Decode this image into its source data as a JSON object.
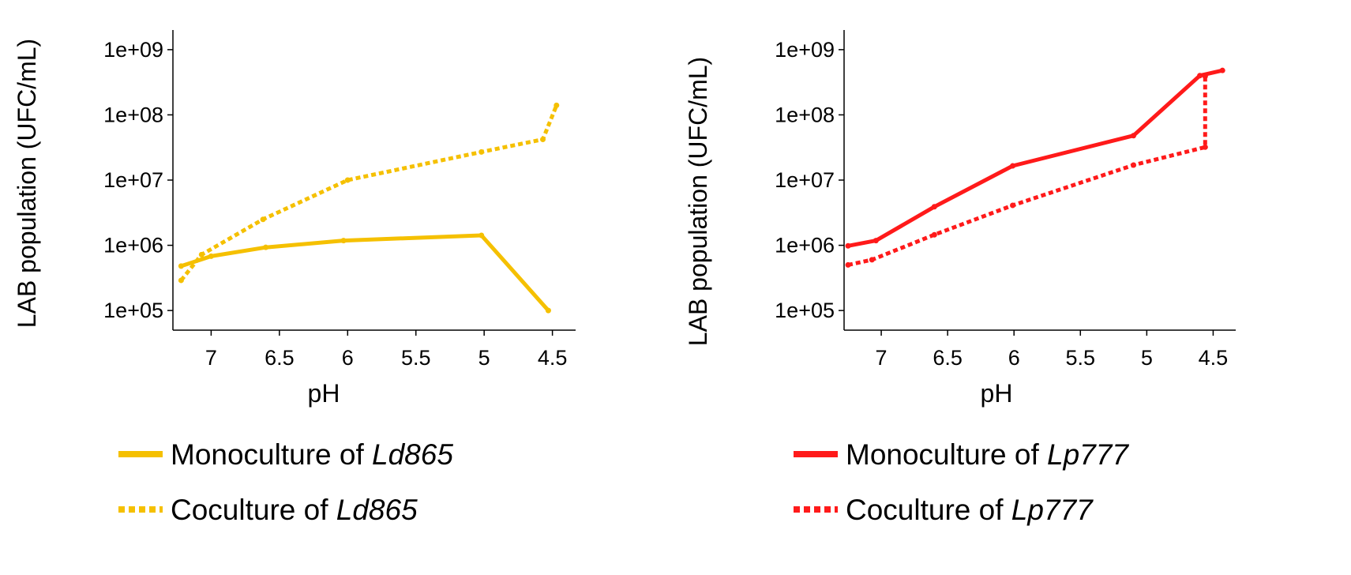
{
  "charts": [
    {
      "legend": [
        {
          "prefix": "Monoculture of ",
          "strain": "Ld865"
        },
        {
          "prefix": "Coculture of ",
          "strain": "Ld865"
        }
      ]
    },
    {
      "legend": [
        {
          "prefix": "Monoculture of ",
          "strain": "Lp777"
        },
        {
          "prefix": "Coculture of ",
          "strain": "Lp777"
        }
      ]
    }
  ],
  "chart_data": [
    {
      "type": "line",
      "xlabel": "pH",
      "ylabel": "LAB population (UFC/mL)",
      "x_reversed": true,
      "xlim": [
        7.28,
        4.33
      ],
      "x_ticks": [
        7,
        6.5,
        6,
        5.5,
        5,
        4.5
      ],
      "x_tick_labels": [
        "7",
        "6.5",
        "6",
        "5.5",
        "5",
        "4.5"
      ],
      "y_scale": "log",
      "ylim": [
        50000,
        2000000000
      ],
      "y_ticks": [
        100000,
        1000000,
        10000000,
        100000000,
        1000000000
      ],
      "y_tick_labels": [
        "1e+05",
        "1e+06",
        "1e+07",
        "1e+08",
        "1e+09"
      ],
      "grid": false,
      "legend_position": "bottom",
      "series": [
        {
          "name": "Monoculture of Ld865",
          "color": "#f5c000",
          "style": "solid",
          "points": [
            [
              7.22,
              480000
            ],
            [
              7.0,
              680000
            ],
            [
              6.6,
              930000
            ],
            [
              6.03,
              1180000
            ],
            [
              5.02,
              1420000
            ],
            [
              4.53,
              100000
            ]
          ]
        },
        {
          "name": "Coculture of Ld865",
          "color": "#f5c000",
          "style": "dotted",
          "points": [
            [
              7.22,
              290000
            ],
            [
              7.07,
              720000
            ],
            [
              6.62,
              2500000
            ],
            [
              6.0,
              10000000
            ],
            [
              5.02,
              27000000
            ],
            [
              4.57,
              42000000
            ],
            [
              4.47,
              140000000
            ]
          ]
        }
      ]
    },
    {
      "type": "line",
      "xlabel": "pH",
      "ylabel": "LAB population (UFC/mL)",
      "x_reversed": true,
      "xlim": [
        7.28,
        4.33
      ],
      "x_ticks": [
        7,
        6.5,
        6,
        5.5,
        5,
        4.5
      ],
      "x_tick_labels": [
        "7",
        "6.5",
        "6",
        "5.5",
        "5",
        "4.5"
      ],
      "y_scale": "log",
      "ylim": [
        50000,
        2000000000
      ],
      "y_ticks": [
        100000,
        1000000,
        10000000,
        100000000,
        1000000000
      ],
      "y_tick_labels": [
        "1e+05",
        "1e+06",
        "1e+07",
        "1e+08",
        "1e+09"
      ],
      "grid": false,
      "legend_position": "bottom",
      "series": [
        {
          "name": "Monoculture of Lp777",
          "color": "#ff1a1a",
          "style": "solid",
          "points": [
            [
              7.25,
              980000
            ],
            [
              7.04,
              1180000
            ],
            [
              6.6,
              3900000
            ],
            [
              6.01,
              16500000
            ],
            [
              5.1,
              48000000
            ],
            [
              4.6,
              400000000
            ],
            [
              4.43,
              480000000
            ]
          ]
        },
        {
          "name": "Coculture of Lp777",
          "color": "#ff1a1a",
          "style": "dotted",
          "points": [
            [
              7.25,
              500000
            ],
            [
              7.07,
              600000
            ],
            [
              6.6,
              1450000
            ],
            [
              6.01,
              4100000
            ],
            [
              5.1,
              17000000
            ],
            [
              4.56,
              32000000
            ],
            [
              4.56,
              390000000
            ]
          ]
        }
      ]
    }
  ]
}
